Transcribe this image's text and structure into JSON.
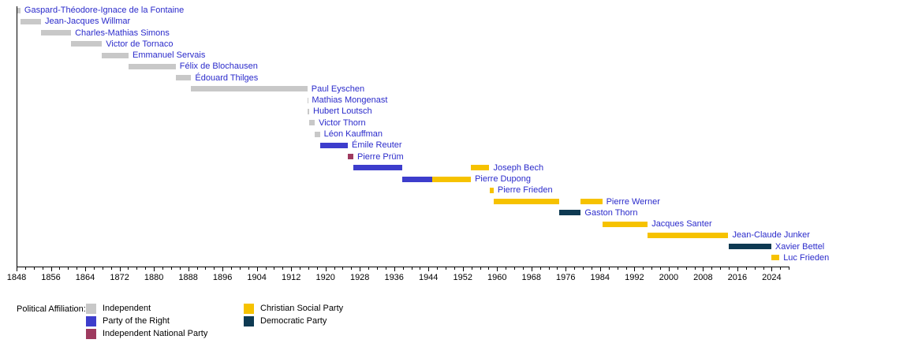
{
  "chart_data": {
    "type": "bar",
    "subtype": "gantt-timeline",
    "description_of_content": "Timeline of heads of government with colored term bars by political affiliation",
    "name_color": "#2b2bcb",
    "axis_color": "#000000",
    "background_color": "#ffffff",
    "x_axis": {
      "min": 1848,
      "max": 2028,
      "major_tick_interval": 8,
      "minor_tick_interval": 2,
      "tick_labels": [
        "1848",
        "1856",
        "1864",
        "1872",
        "1880",
        "1888",
        "1896",
        "1904",
        "1912",
        "1920",
        "1928",
        "1936",
        "1944",
        "1952",
        "1960",
        "1968",
        "1976",
        "1984",
        "1992",
        "2000",
        "2008",
        "2016",
        "2024"
      ]
    },
    "parties": [
      {
        "id": "independent",
        "label": "Independent",
        "color": "#c8c8c8"
      },
      {
        "id": "party_of_the_right",
        "label": "Party of the Right",
        "color": "#3d3dcc"
      },
      {
        "id": "independent_national_party",
        "label": "Independent National Party",
        "color": "#9e3a5f"
      },
      {
        "id": "christian_social_party",
        "label": "Christian Social Party",
        "color": "#f6c200"
      },
      {
        "id": "democratic_party",
        "label": "Democratic Party",
        "color": "#0e3a52"
      }
    ],
    "legend": {
      "title": "Political Affiliation:",
      "columns": [
        [
          "independent",
          "party_of_the_right",
          "independent_national_party"
        ],
        [
          "christian_social_party",
          "democratic_party"
        ]
      ]
    },
    "people": [
      {
        "name": "Gaspard-Théodore-Ignace de la Fontaine",
        "terms": [
          {
            "start": 1848.2,
            "end": 1848.9,
            "party": "independent"
          }
        ]
      },
      {
        "name": "Jean-Jacques Willmar",
        "terms": [
          {
            "start": 1848.9,
            "end": 1853.7,
            "party": "independent"
          }
        ]
      },
      {
        "name": "Charles-Mathias Simons",
        "terms": [
          {
            "start": 1853.7,
            "end": 1860.7,
            "party": "independent"
          }
        ]
      },
      {
        "name": "Victor de Tornaco",
        "terms": [
          {
            "start": 1860.7,
            "end": 1867.9,
            "party": "independent"
          }
        ]
      },
      {
        "name": "Emmanuel Servais",
        "terms": [
          {
            "start": 1867.9,
            "end": 1874.1,
            "party": "independent"
          }
        ]
      },
      {
        "name": "Félix de Blochausen",
        "terms": [
          {
            "start": 1874.1,
            "end": 1885.1,
            "party": "independent"
          }
        ]
      },
      {
        "name": "Édouard Thilges",
        "terms": [
          {
            "start": 1885.1,
            "end": 1888.7,
            "party": "independent"
          }
        ]
      },
      {
        "name": "Paul Eyschen",
        "terms": [
          {
            "start": 1888.7,
            "end": 1915.8,
            "party": "independent"
          }
        ]
      },
      {
        "name": "Mathias Mongenast",
        "terms": [
          {
            "start": 1915.8,
            "end": 1915.9,
            "party": "independent"
          }
        ]
      },
      {
        "name": "Hubert Loutsch",
        "terms": [
          {
            "start": 1915.9,
            "end": 1916.2,
            "party": "independent"
          }
        ]
      },
      {
        "name": "Victor Thorn",
        "terms": [
          {
            "start": 1916.2,
            "end": 1917.5,
            "party": "independent"
          }
        ]
      },
      {
        "name": "Léon Kauffman",
        "terms": [
          {
            "start": 1917.5,
            "end": 1918.7,
            "party": "independent"
          }
        ]
      },
      {
        "name": "Émile Reuter",
        "terms": [
          {
            "start": 1918.7,
            "end": 1925.2,
            "party": "party_of_the_right"
          }
        ]
      },
      {
        "name": "Pierre Prüm",
        "terms": [
          {
            "start": 1925.2,
            "end": 1926.5,
            "party": "independent_national_party"
          }
        ]
      },
      {
        "name": "Joseph Bech",
        "terms": [
          {
            "start": 1926.5,
            "end": 1937.8,
            "party": "party_of_the_right"
          },
          {
            "start": 1953.9,
            "end": 1958.2,
            "party": "christian_social_party"
          }
        ]
      },
      {
        "name": "Pierre Dupong",
        "terms": [
          {
            "start": 1937.8,
            "end": 1944.9,
            "party": "party_of_the_right"
          },
          {
            "start": 1944.9,
            "end": 1953.9,
            "party": "christian_social_party"
          }
        ]
      },
      {
        "name": "Pierre Frieden",
        "terms": [
          {
            "start": 1958.2,
            "end": 1959.2,
            "party": "christian_social_party"
          }
        ]
      },
      {
        "name": "Pierre Werner",
        "terms": [
          {
            "start": 1959.2,
            "end": 1974.5,
            "party": "christian_social_party"
          },
          {
            "start": 1979.5,
            "end": 1984.5,
            "party": "christian_social_party"
          }
        ]
      },
      {
        "name": "Gaston Thorn",
        "terms": [
          {
            "start": 1974.5,
            "end": 1979.5,
            "party": "democratic_party"
          }
        ]
      },
      {
        "name": "Jacques Santer",
        "terms": [
          {
            "start": 1984.5,
            "end": 1995.1,
            "party": "christian_social_party"
          }
        ]
      },
      {
        "name": "Jean-Claude Junker",
        "terms": [
          {
            "start": 1995.1,
            "end": 2013.9,
            "party": "christian_social_party"
          }
        ]
      },
      {
        "name": "Xavier Bettel",
        "terms": [
          {
            "start": 2013.9,
            "end": 2023.9,
            "party": "democratic_party"
          }
        ]
      },
      {
        "name": "Luc Frieden",
        "terms": [
          {
            "start": 2023.9,
            "end": 2025.8,
            "party": "christian_social_party"
          }
        ]
      }
    ]
  }
}
